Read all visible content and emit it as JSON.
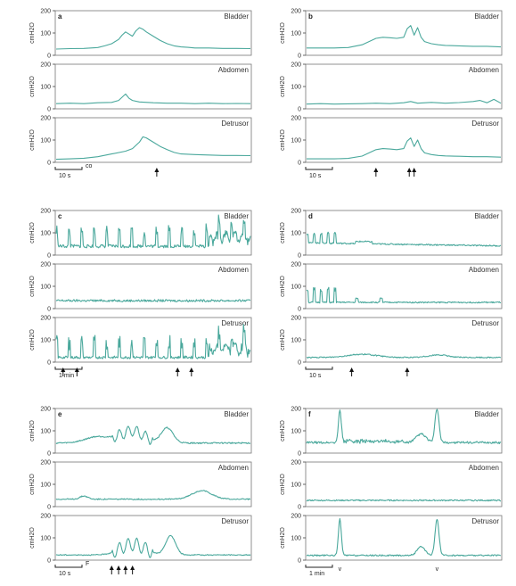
{
  "chart_data": [
    {
      "type": "line",
      "panel": "a",
      "scale_bar": "10 s",
      "annotation": "co",
      "arrows": [
        145
      ],
      "ylabel": "cmH2O",
      "traces": [
        {
          "name": "Bladder",
          "ylim": [
            0,
            200
          ],
          "yticks": [
            0,
            100,
            200
          ],
          "x": [
            0,
            20,
            40,
            60,
            70,
            80,
            90,
            95,
            100,
            105,
            110,
            115,
            120,
            125,
            130,
            140,
            150,
            160,
            170,
            180,
            190,
            200,
            220,
            240,
            260,
            280
          ],
          "y": [
            25,
            27,
            28,
            32,
            40,
            50,
            70,
            90,
            105,
            95,
            85,
            110,
            125,
            118,
            105,
            85,
            65,
            50,
            40,
            35,
            33,
            30,
            30,
            28,
            28,
            27
          ]
        },
        {
          "name": "Abdomen",
          "ylim": [
            0,
            200
          ],
          "yticks": [
            0,
            100,
            200
          ],
          "x": [
            0,
            20,
            40,
            60,
            80,
            90,
            95,
            100,
            105,
            110,
            120,
            140,
            160,
            180,
            200,
            220,
            240,
            260,
            280
          ],
          "y": [
            20,
            22,
            20,
            24,
            26,
            35,
            50,
            65,
            45,
            35,
            28,
            24,
            22,
            22,
            20,
            22,
            20,
            21,
            20
          ]
        },
        {
          "name": "Detrusor",
          "ylim": [
            0,
            200
          ],
          "yticks": [
            0,
            100,
            200
          ],
          "x": [
            0,
            20,
            40,
            60,
            80,
            100,
            110,
            120,
            125,
            130,
            140,
            150,
            160,
            170,
            180,
            200,
            220,
            240,
            260,
            280
          ],
          "y": [
            10,
            12,
            15,
            22,
            35,
            48,
            60,
            90,
            115,
            110,
            90,
            70,
            55,
            42,
            35,
            32,
            30,
            28,
            28,
            27
          ]
        }
      ]
    },
    {
      "type": "line",
      "panel": "b",
      "scale_bar": "10 s",
      "arrows": [
        100,
        148,
        155
      ],
      "ylabel": "cmH2O",
      "traces": [
        {
          "name": "Bladder",
          "ylim": [
            0,
            200
          ],
          "yticks": [
            0,
            100,
            200
          ],
          "x": [
            0,
            20,
            40,
            60,
            80,
            90,
            100,
            110,
            120,
            130,
            140,
            145,
            150,
            155,
            160,
            165,
            170,
            180,
            190,
            200,
            220,
            240,
            260,
            280
          ],
          "y": [
            30,
            30,
            30,
            32,
            45,
            60,
            75,
            80,
            78,
            75,
            80,
            120,
            135,
            90,
            125,
            80,
            60,
            50,
            45,
            42,
            40,
            38,
            38,
            35
          ]
        },
        {
          "name": "Abdomen",
          "ylim": [
            0,
            200
          ],
          "yticks": [
            0,
            100,
            200
          ],
          "x": [
            0,
            20,
            40,
            60,
            80,
            100,
            120,
            140,
            150,
            160,
            180,
            200,
            220,
            240,
            250,
            260,
            270,
            280
          ],
          "y": [
            18,
            20,
            18,
            19,
            20,
            22,
            20,
            24,
            30,
            22,
            26,
            22,
            25,
            30,
            35,
            24,
            40,
            22
          ]
        },
        {
          "name": "Detrusor",
          "ylim": [
            0,
            200
          ],
          "yticks": [
            0,
            100,
            200
          ],
          "x": [
            0,
            20,
            40,
            60,
            80,
            90,
            100,
            110,
            120,
            130,
            140,
            145,
            150,
            155,
            160,
            165,
            170,
            180,
            190,
            200,
            220,
            240,
            260,
            280
          ],
          "y": [
            12,
            12,
            12,
            14,
            25,
            40,
            55,
            60,
            58,
            55,
            60,
            95,
            110,
            70,
            100,
            60,
            40,
            32,
            28,
            26,
            24,
            22,
            22,
            20
          ]
        }
      ]
    },
    {
      "type": "line",
      "panel": "c",
      "scale_bar": "1 min",
      "arrows": [
        10,
        30,
        175,
        195
      ],
      "ylabel": "cmH2O",
      "traces": [
        {
          "name": "Bladder",
          "ylim": [
            0,
            200
          ],
          "yticks": [
            0,
            100,
            200
          ]
        },
        {
          "name": "Abdomen",
          "ylim": [
            0,
            200
          ],
          "yticks": [
            0,
            100,
            200
          ]
        },
        {
          "name": "Detrusor",
          "ylim": [
            0,
            200
          ],
          "yticks": [
            0,
            100,
            200
          ]
        }
      ]
    },
    {
      "type": "line",
      "panel": "d",
      "scale_bar": "10 s",
      "arrows": [
        65,
        145
      ],
      "ylabel": "cmH2O",
      "traces": [
        {
          "name": "Bladder",
          "ylim": [
            0,
            200
          ],
          "yticks": [
            0,
            100,
            200
          ]
        },
        {
          "name": "Abdomen",
          "ylim": [
            0,
            200
          ],
          "yticks": [
            0,
            100,
            200
          ]
        },
        {
          "name": "Detrusor",
          "ylim": [
            0,
            200
          ],
          "yticks": [
            0,
            100,
            200
          ]
        }
      ]
    },
    {
      "type": "line",
      "panel": "e",
      "scale_bar": "10 s",
      "annotation": "F",
      "arrows": [
        80,
        90,
        100,
        110
      ],
      "ylabel": "cmH2O",
      "traces": [
        {
          "name": "Bladder",
          "ylim": [
            0,
            200
          ],
          "yticks": [
            0,
            100,
            200
          ]
        },
        {
          "name": "Abdomen",
          "ylim": [
            0,
            200
          ],
          "yticks": [
            0,
            100,
            200
          ]
        },
        {
          "name": "Detrusor",
          "ylim": [
            0,
            200
          ],
          "yticks": [
            0,
            100,
            200
          ]
        }
      ]
    },
    {
      "type": "line",
      "panel": "f",
      "scale_bar": "1 min",
      "markers": [
        {
          "x": 48,
          "label": "v"
        },
        {
          "x": 188,
          "label": "v"
        }
      ],
      "ylabel": "cmH2O",
      "traces": [
        {
          "name": "Bladder",
          "ylim": [
            0,
            200
          ],
          "yticks": [
            0,
            100,
            200
          ]
        },
        {
          "name": "Abdomen",
          "ylim": [
            0,
            200
          ],
          "yticks": [
            0,
            100,
            200
          ]
        },
        {
          "name": "Detrusor",
          "ylim": [
            0,
            200
          ],
          "yticks": [
            0,
            100,
            200
          ]
        }
      ]
    }
  ]
}
